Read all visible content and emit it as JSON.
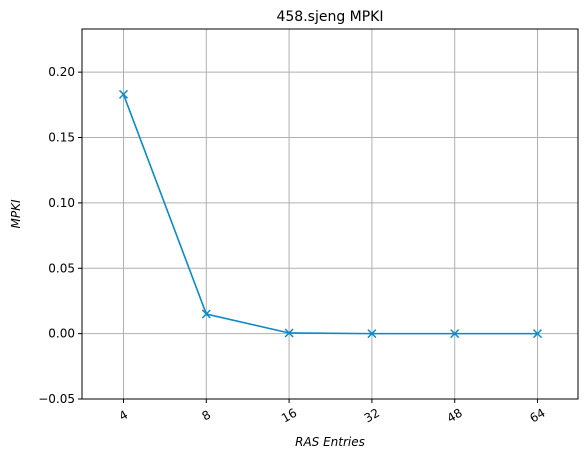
{
  "chart_data": {
    "type": "line",
    "title": "458.sjeng MPKI",
    "xlabel": "RAS Entries",
    "ylabel": "MPKI",
    "categories": [
      "4",
      "8",
      "16",
      "32",
      "48",
      "64"
    ],
    "series": [
      {
        "values": [
          0.183,
          0.015,
          0.0005,
          0.0,
          0.0,
          0.0
        ]
      }
    ],
    "ylim": [
      -0.05,
      0.233
    ],
    "yticks": [
      "−0.05",
      "0.00",
      "0.05",
      "0.10",
      "0.15",
      "0.20"
    ],
    "ytick_values": [
      -0.05,
      0.0,
      0.05,
      0.1,
      0.15,
      0.2
    ],
    "grid": true,
    "marker": "x",
    "line_color": "#0a8ac9",
    "x_tick_rotation": -30
  }
}
